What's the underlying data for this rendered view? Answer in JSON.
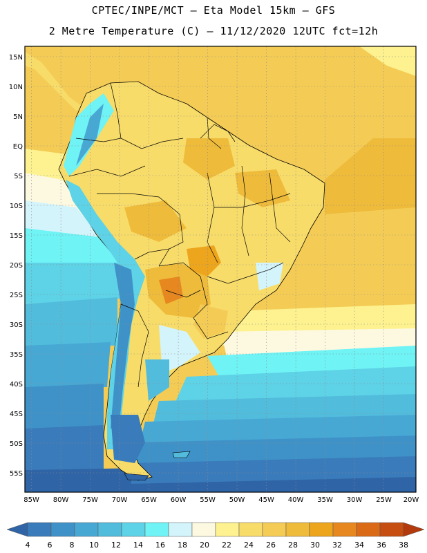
{
  "header": {
    "line1": "CPTEC/INPE/MCT –   Eta Model 15km – GFS",
    "line2": "2 Metre Temperature (C) – 11/12/2020 12UTC fct=12h"
  },
  "map": {
    "lat_labels": [
      "15N",
      "10N",
      "5N",
      "EQ",
      "5S",
      "10S",
      "15S",
      "20S",
      "25S",
      "30S",
      "35S",
      "40S",
      "45S",
      "50S",
      "55S"
    ],
    "lon_labels": [
      "85W",
      "80W",
      "75W",
      "70W",
      "65W",
      "60W",
      "55W",
      "50W",
      "45W",
      "40W",
      "35W",
      "30W",
      "25W",
      "20W"
    ]
  },
  "colorbar": {
    "labels": [
      "4",
      "6",
      "8",
      "10",
      "12",
      "14",
      "16",
      "18",
      "20",
      "22",
      "24",
      "26",
      "28",
      "30",
      "32",
      "34",
      "36",
      "38"
    ],
    "colors": [
      "#2f64a6",
      "#3a7bbb",
      "#3f92c8",
      "#48a8d4",
      "#52bcdd",
      "#5ed2e6",
      "#6ff3f5",
      "#d4f4fb",
      "#fdf9e1",
      "#fdf28f",
      "#f8dc6a",
      "#f4cc55",
      "#eebb3b",
      "#eda51d",
      "#e7871f",
      "#da6a16",
      "#c64e10",
      "#b33a0c"
    ]
  }
}
